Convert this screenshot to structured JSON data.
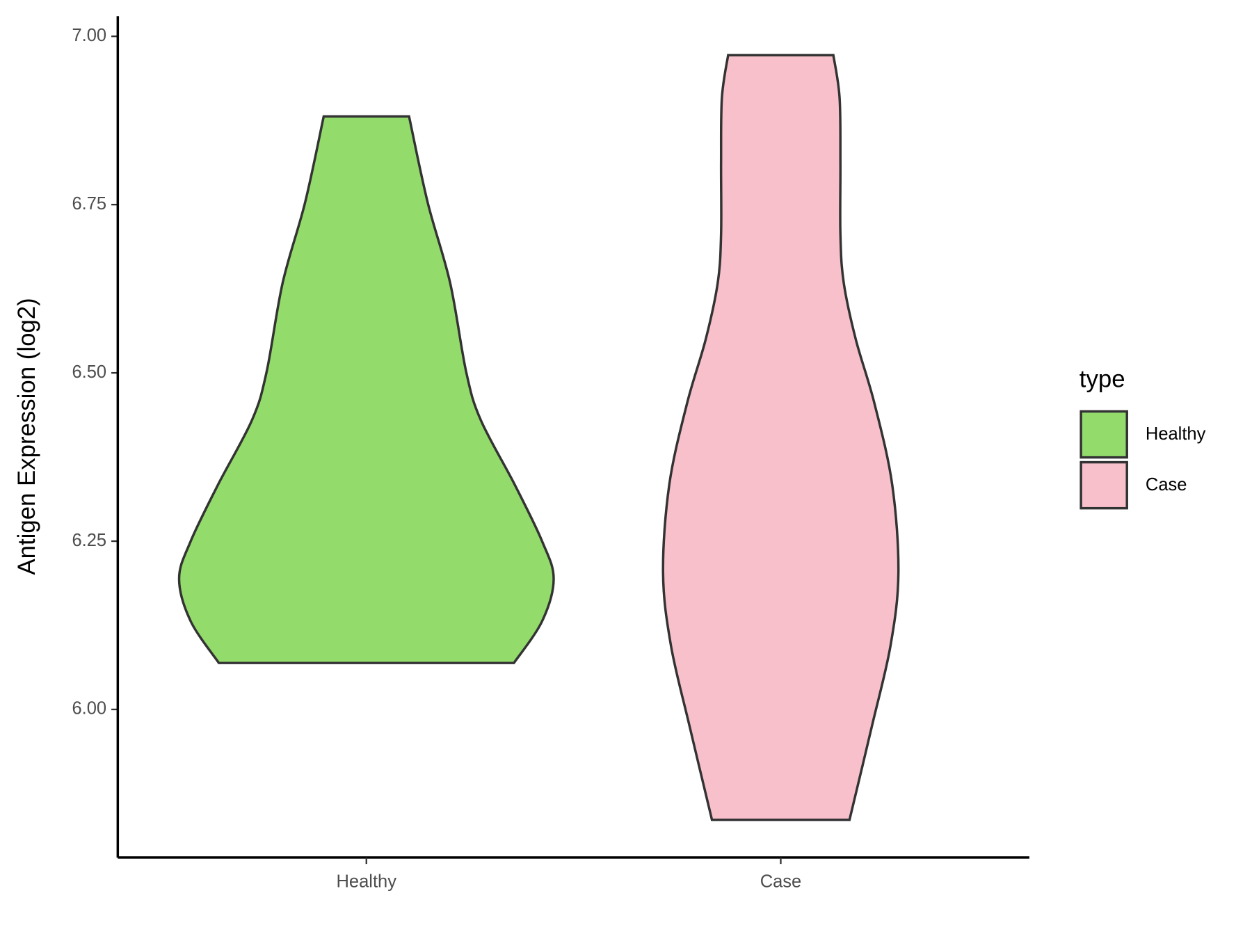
{
  "chart_data": {
    "type": "violin",
    "y_label": "Antigen Expression (log2)",
    "categories": [
      "Healthy",
      "Case"
    ],
    "legend_title": "type",
    "legend": "right",
    "ylim": [
      5.78,
      7.03
    ],
    "yticks": [
      {
        "value": 6,
        "label": "6.00"
      },
      {
        "value": 6.25,
        "label": "6.25"
      },
      {
        "value": 6.5,
        "label": "6.50"
      },
      {
        "value": 6.75,
        "label": "6.75"
      },
      {
        "value": 7,
        "label": "7.00"
      }
    ],
    "series": [
      {
        "name": "Healthy",
        "color": "#93dc6b",
        "y": [
          6.881,
          6.753,
          6.634,
          6.501,
          6.43,
          6.334,
          6.25,
          6.194,
          6.131,
          6.069
        ],
        "width": [
          0.103,
          0.148,
          0.202,
          0.241,
          0.276,
          0.358,
          0.424,
          0.452,
          0.424,
          0.356
        ]
      },
      {
        "name": "Case",
        "color": "#f8c0cb",
        "y": [
          6.972,
          6.909,
          6.813,
          6.706,
          6.634,
          6.55,
          6.455,
          6.334,
          6.203,
          6.095,
          5.975,
          5.836
        ],
        "width": [
          0.127,
          0.142,
          0.144,
          0.144,
          0.152,
          0.181,
          0.226,
          0.269,
          0.284,
          0.265,
          0.22,
          0.166
        ]
      }
    ]
  }
}
